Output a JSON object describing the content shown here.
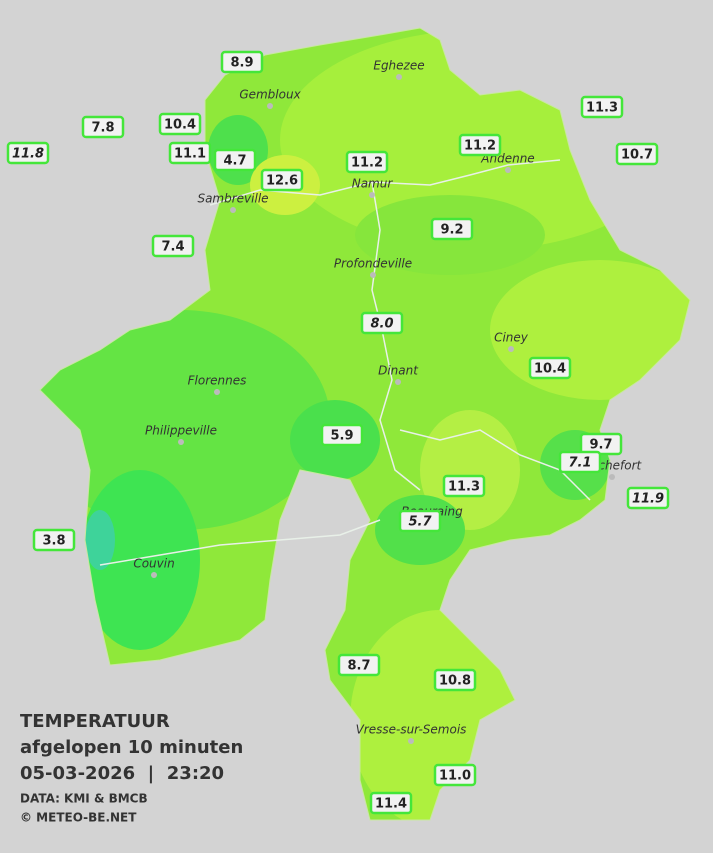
{
  "legend": {
    "title": "TEMPERATUUR",
    "subtitle": "afgelopen 10 minuten",
    "datetime": "05-03-2026  |  23:20",
    "source": "DATA: KMI & BMCB",
    "copyright": "© METEO-BE.NET"
  },
  "cities": [
    {
      "name": "Eghezee"
    },
    {
      "name": "Gembloux"
    },
    {
      "name": "Andenne"
    },
    {
      "name": "Namur"
    },
    {
      "name": "Sambreville"
    },
    {
      "name": "Profondeville"
    },
    {
      "name": "Ciney"
    },
    {
      "name": "Dinant"
    },
    {
      "name": "Florennes"
    },
    {
      "name": "Philippeville"
    },
    {
      "name": "Rochefort"
    },
    {
      "name": "Beauraing"
    },
    {
      "name": "Couvin"
    },
    {
      "name": "Vresse-sur-Semois"
    }
  ],
  "stations": [
    {
      "value": "8.9"
    },
    {
      "value": "7.8"
    },
    {
      "value": "10.4"
    },
    {
      "value": "11.8"
    },
    {
      "value": "11.1"
    },
    {
      "value": "4.7"
    },
    {
      "value": "12.6"
    },
    {
      "value": "11.2"
    },
    {
      "value": "11.2"
    },
    {
      "value": "11.3"
    },
    {
      "value": "10.7"
    },
    {
      "value": "7.4"
    },
    {
      "value": "9.2"
    },
    {
      "value": "8.0"
    },
    {
      "value": "10.4"
    },
    {
      "value": "5.9"
    },
    {
      "value": "9.7"
    },
    {
      "value": "7.1"
    },
    {
      "value": "11.3"
    },
    {
      "value": "11.9"
    },
    {
      "value": "5.7"
    },
    {
      "value": "3.8"
    },
    {
      "value": "8.7"
    },
    {
      "value": "10.8"
    },
    {
      "value": "11.0"
    },
    {
      "value": "11.4"
    }
  ]
}
